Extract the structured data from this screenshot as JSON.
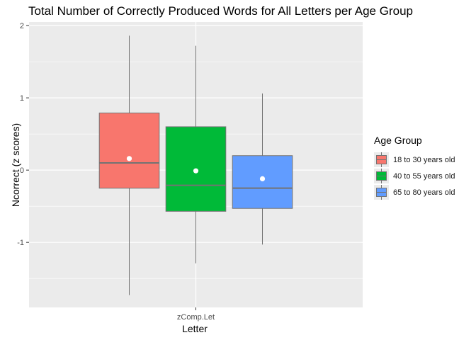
{
  "chart_data": {
    "type": "box",
    "title": "Total Number of Correctly Produced Words for All Letters per Age Group",
    "xlabel": "Letter",
    "ylabel": "Ncorrect (z scores)",
    "categories": [
      "zComp.Let"
    ],
    "ylim": [
      -1.9,
      2.05
    ],
    "yticks": [
      -1,
      0,
      1,
      2
    ],
    "grid": true,
    "legend": {
      "title": "Age Group",
      "placement": "right"
    },
    "series": [
      {
        "name": "18 to 30 years old",
        "color": "#F8766D",
        "whisker_low": -1.73,
        "q1": -0.25,
        "median": 0.1,
        "q3": 0.79,
        "whisker_high": 1.86,
        "mean": 0.16
      },
      {
        "name": "40 to 55 years old",
        "color": "#00BA38",
        "whisker_low": -1.29,
        "q1": -0.57,
        "median": -0.21,
        "q3": 0.6,
        "whisker_high": 1.72,
        "mean": -0.01
      },
      {
        "name": "65 to 80 years old",
        "color": "#619CFF",
        "whisker_low": -1.03,
        "q1": -0.53,
        "median": -0.25,
        "q3": 0.2,
        "whisker_high": 1.06,
        "mean": -0.12
      }
    ]
  }
}
